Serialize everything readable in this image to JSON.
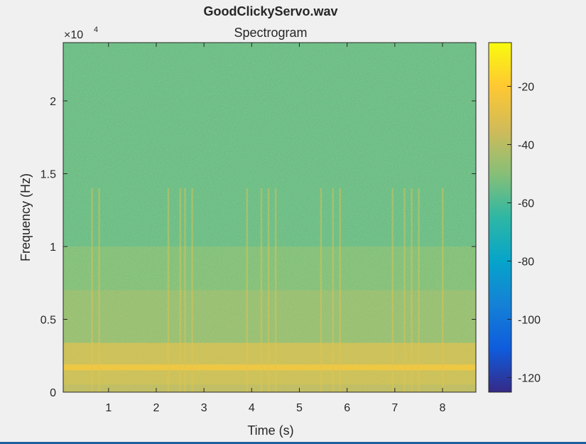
{
  "figure": {
    "title": "GoodClickyServo.wav",
    "subtitle": "Spectrogram",
    "exponent_base": "×10",
    "exponent_power": "4"
  },
  "chart_data": {
    "type": "heatmap",
    "title": "GoodClickyServo.wav",
    "subtitle": "Spectrogram",
    "xlabel": "Time (s)",
    "ylabel": "Frequency (Hz)",
    "xlim": [
      0.05,
      8.7
    ],
    "ylim": [
      0,
      24000
    ],
    "xticks": [
      1,
      2,
      3,
      4,
      5,
      6,
      7,
      8
    ],
    "xtick_labels": [
      "1",
      "2",
      "3",
      "4",
      "5",
      "6",
      "7",
      "8"
    ],
    "yticks": [
      0,
      5000,
      10000,
      15000,
      20000
    ],
    "ytick_labels": [
      "0",
      "0.5",
      "1",
      "1.5",
      "2"
    ],
    "colorbar": {
      "colormap": "parula",
      "clim": [
        -125,
        -5
      ],
      "ticks": [
        -120,
        -100,
        -80,
        -60,
        -40,
        -20
      ],
      "tick_labels": [
        "-120",
        "-100",
        "-80",
        "-60",
        "-40",
        "-20"
      ]
    },
    "background_level_db": -55,
    "bands": [
      {
        "freq_range": [
          0,
          500
        ],
        "level_db": -35
      },
      {
        "freq_range": [
          500,
          3400
        ],
        "level_db": -30
      },
      {
        "freq_range": [
          1500,
          1900
        ],
        "level_db": -22
      },
      {
        "freq_range": [
          3400,
          7000
        ],
        "level_db": -45
      },
      {
        "freq_range": [
          7000,
          10000
        ],
        "level_db": -50
      }
    ],
    "click_times": [
      0.65,
      0.8,
      2.25,
      2.5,
      2.6,
      2.75,
      3.9,
      4.2,
      4.35,
      4.5,
      5.45,
      5.7,
      5.85,
      6.95,
      7.2,
      7.35,
      7.5,
      8.0
    ]
  },
  "colors": {
    "background": "#f0f0f0",
    "axis": "#262626",
    "parula_low": "#352a87",
    "parula_high": "#f9fb0e"
  }
}
